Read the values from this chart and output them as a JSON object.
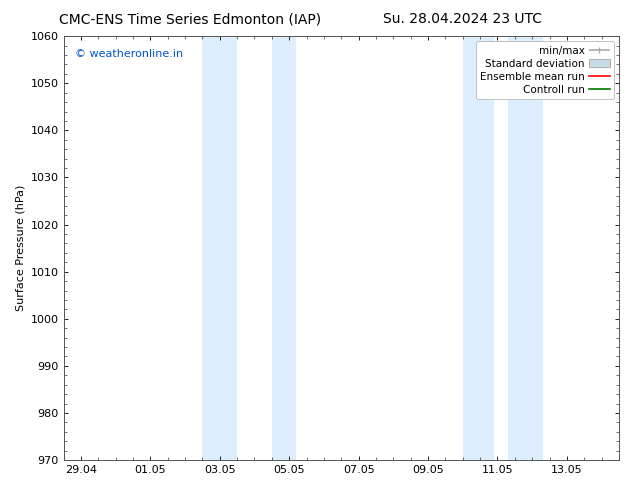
{
  "title_left": "CMC-ENS Time Series Edmonton (IAP)",
  "title_right": "Su. 28.04.2024 23 UTC",
  "ylabel": "Surface Pressure (hPa)",
  "ylim": [
    970,
    1060
  ],
  "yticks": [
    970,
    980,
    990,
    1000,
    1010,
    1020,
    1030,
    1040,
    1050,
    1060
  ],
  "xlim_start": -0.5,
  "xlim_end": 15.5,
  "xtick_labels": [
    "29.04",
    "01.05",
    "03.05",
    "05.05",
    "07.05",
    "09.05",
    "11.05",
    "13.05"
  ],
  "xtick_positions": [
    0,
    2,
    4,
    6,
    8,
    10,
    12,
    14
  ],
  "shaded_bands": [
    {
      "x_start": 3.5,
      "x_end": 4.5
    },
    {
      "x_start": 5.5,
      "x_end": 6.2
    },
    {
      "x_start": 11.0,
      "x_end": 11.9
    },
    {
      "x_start": 12.3,
      "x_end": 13.3
    }
  ],
  "shaded_color": "#ddeeff",
  "watermark_text": "© weatheronline.in",
  "watermark_color": "#0055cc",
  "legend_entries": [
    {
      "label": "min/max",
      "color": "#aaaaaa",
      "lw": 1.2,
      "style": "line_caps"
    },
    {
      "label": "Standard deviation",
      "color": "#c8dce8",
      "lw": 5,
      "style": "block"
    },
    {
      "label": "Ensemble mean run",
      "color": "#ff0000",
      "lw": 1.2,
      "style": "line"
    },
    {
      "label": "Controll run",
      "color": "#007700",
      "lw": 1.2,
      "style": "line"
    }
  ],
  "bg_color": "#ffffff",
  "title_fontsize": 10,
  "axis_label_fontsize": 8,
  "tick_fontsize": 8,
  "legend_fontsize": 7.5
}
